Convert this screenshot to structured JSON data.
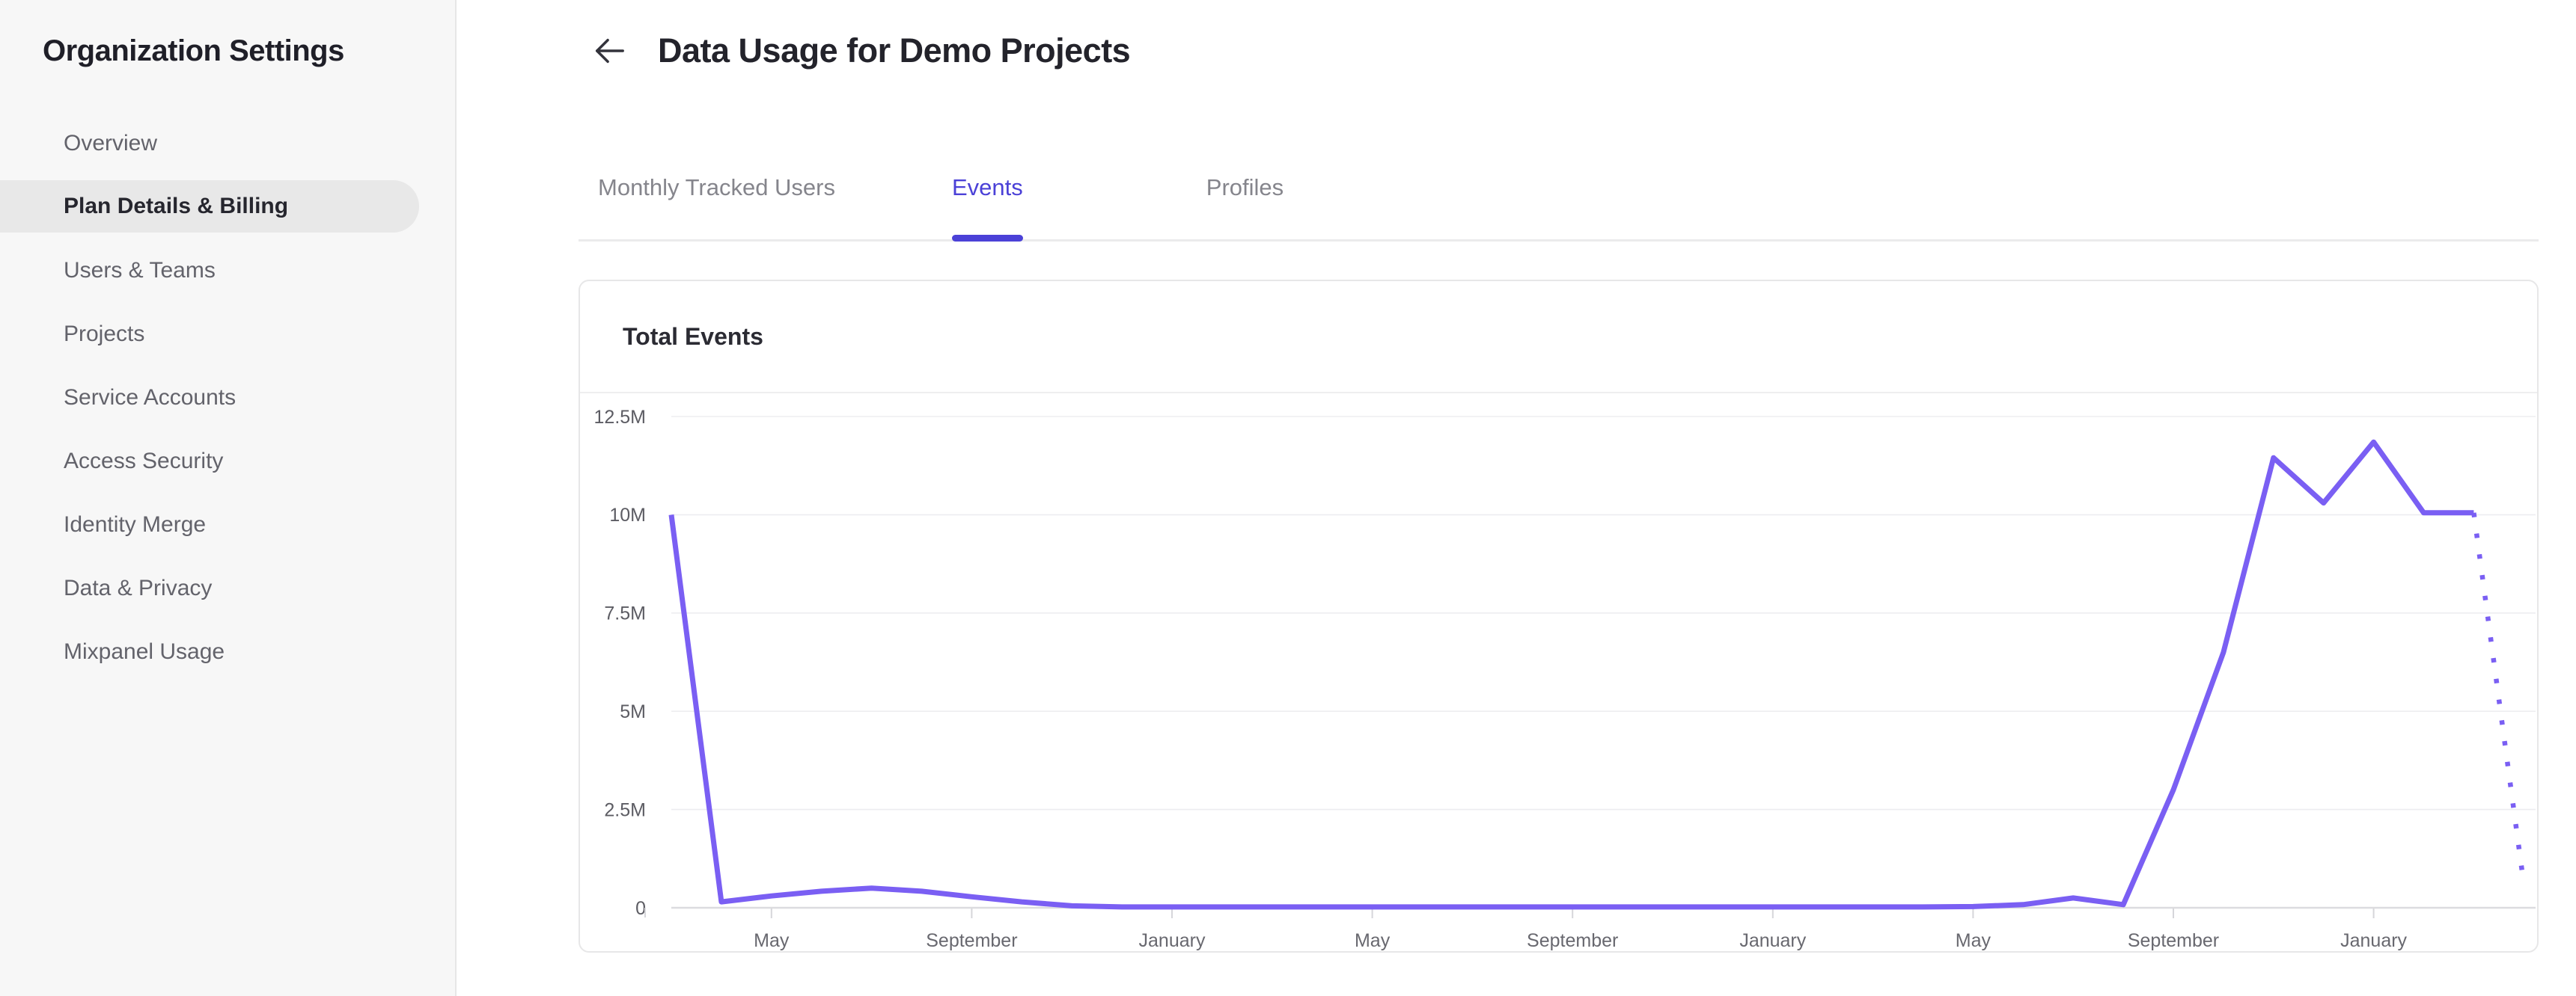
{
  "sidebar": {
    "title": "Organization Settings",
    "items": [
      {
        "label": "Overview",
        "active": false
      },
      {
        "label": "Plan Details & Billing",
        "active": true
      },
      {
        "label": "Users & Teams",
        "active": false
      },
      {
        "label": "Projects",
        "active": false
      },
      {
        "label": "Service Accounts",
        "active": false
      },
      {
        "label": "Access Security",
        "active": false
      },
      {
        "label": "Identity Merge",
        "active": false
      },
      {
        "label": "Data & Privacy",
        "active": false
      },
      {
        "label": "Mixpanel Usage",
        "active": false
      }
    ]
  },
  "header": {
    "title": "Data Usage for Demo Projects",
    "back_icon": "arrow-left-icon"
  },
  "tabs": [
    {
      "label": "Monthly Tracked Users",
      "active": false
    },
    {
      "label": "Events",
      "active": true
    },
    {
      "label": "Profiles",
      "active": false
    }
  ],
  "colors": {
    "accent": "#4B41D7",
    "chart_line": "#7A5FF3",
    "active_item_bg": "#E8E8E8",
    "gridline": "#EDEDF0",
    "axis_line": "#DCDCDF"
  },
  "chart_data": {
    "type": "line",
    "title": "Total Events",
    "ylabel": "",
    "xlabel": "",
    "ylim_millions": [
      0,
      12.5
    ],
    "y_tick_labels": [
      "12.5M",
      "10M",
      "7.5M",
      "5M",
      "2.5M",
      "0"
    ],
    "x_tick_labels": [
      "May",
      "September",
      "January",
      "May",
      "September",
      "January",
      "May",
      "September",
      "January"
    ],
    "x_tick_indices": [
      2,
      6,
      10,
      14,
      18,
      22,
      26,
      30,
      34
    ],
    "values_millions": [
      10,
      0.15,
      0.3,
      0.42,
      0.5,
      0.42,
      0.28,
      0.15,
      0.05,
      0.02,
      0.02,
      0.02,
      0.02,
      0.02,
      0.02,
      0.02,
      0.02,
      0.02,
      0.02,
      0.02,
      0.02,
      0.02,
      0.02,
      0.02,
      0.02,
      0.02,
      0.03,
      0.08,
      0.25,
      0.08,
      3.0,
      6.5,
      11.45,
      10.3,
      11.85,
      10.05,
      10.05,
      0.6
    ],
    "solid_until_index": 36,
    "projection_style": "dotted",
    "grid": true,
    "legend": "none"
  }
}
